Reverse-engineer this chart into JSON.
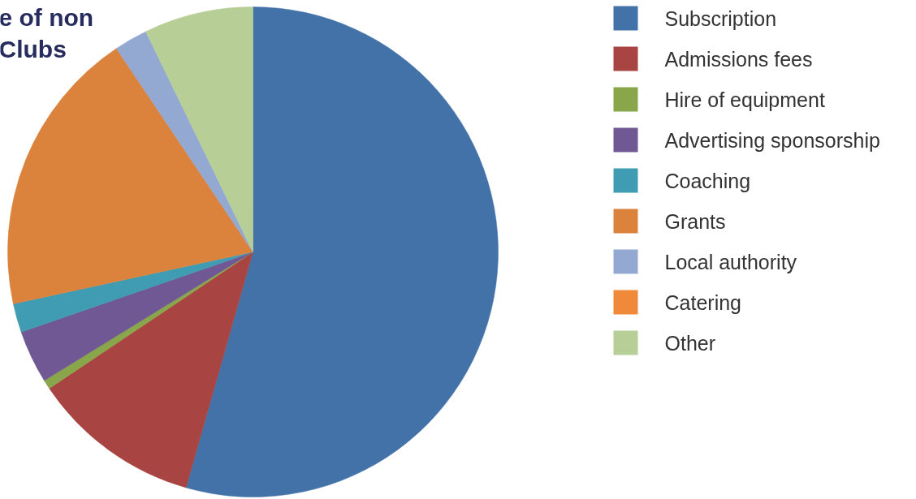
{
  "chart_data": {
    "type": "pie",
    "title": "e of non\nClubs",
    "categories": [
      "Subscription",
      "Admissions fees",
      "Hire of equipment",
      "Advertising sponsorship",
      "Coaching",
      "Grants",
      "Local authority",
      "Catering",
      "Other"
    ],
    "values": [
      54.4,
      11.2,
      0.6,
      3.5,
      1.9,
      19.0,
      2.2,
      0,
      7.2
    ],
    "colors": [
      "#4272a8",
      "#a84442",
      "#8aa64b",
      "#6f5893",
      "#3f9cb2",
      "#db823c",
      "#93a9d1",
      "#f0893a",
      "#b7cf96"
    ],
    "legend": "top right"
  }
}
